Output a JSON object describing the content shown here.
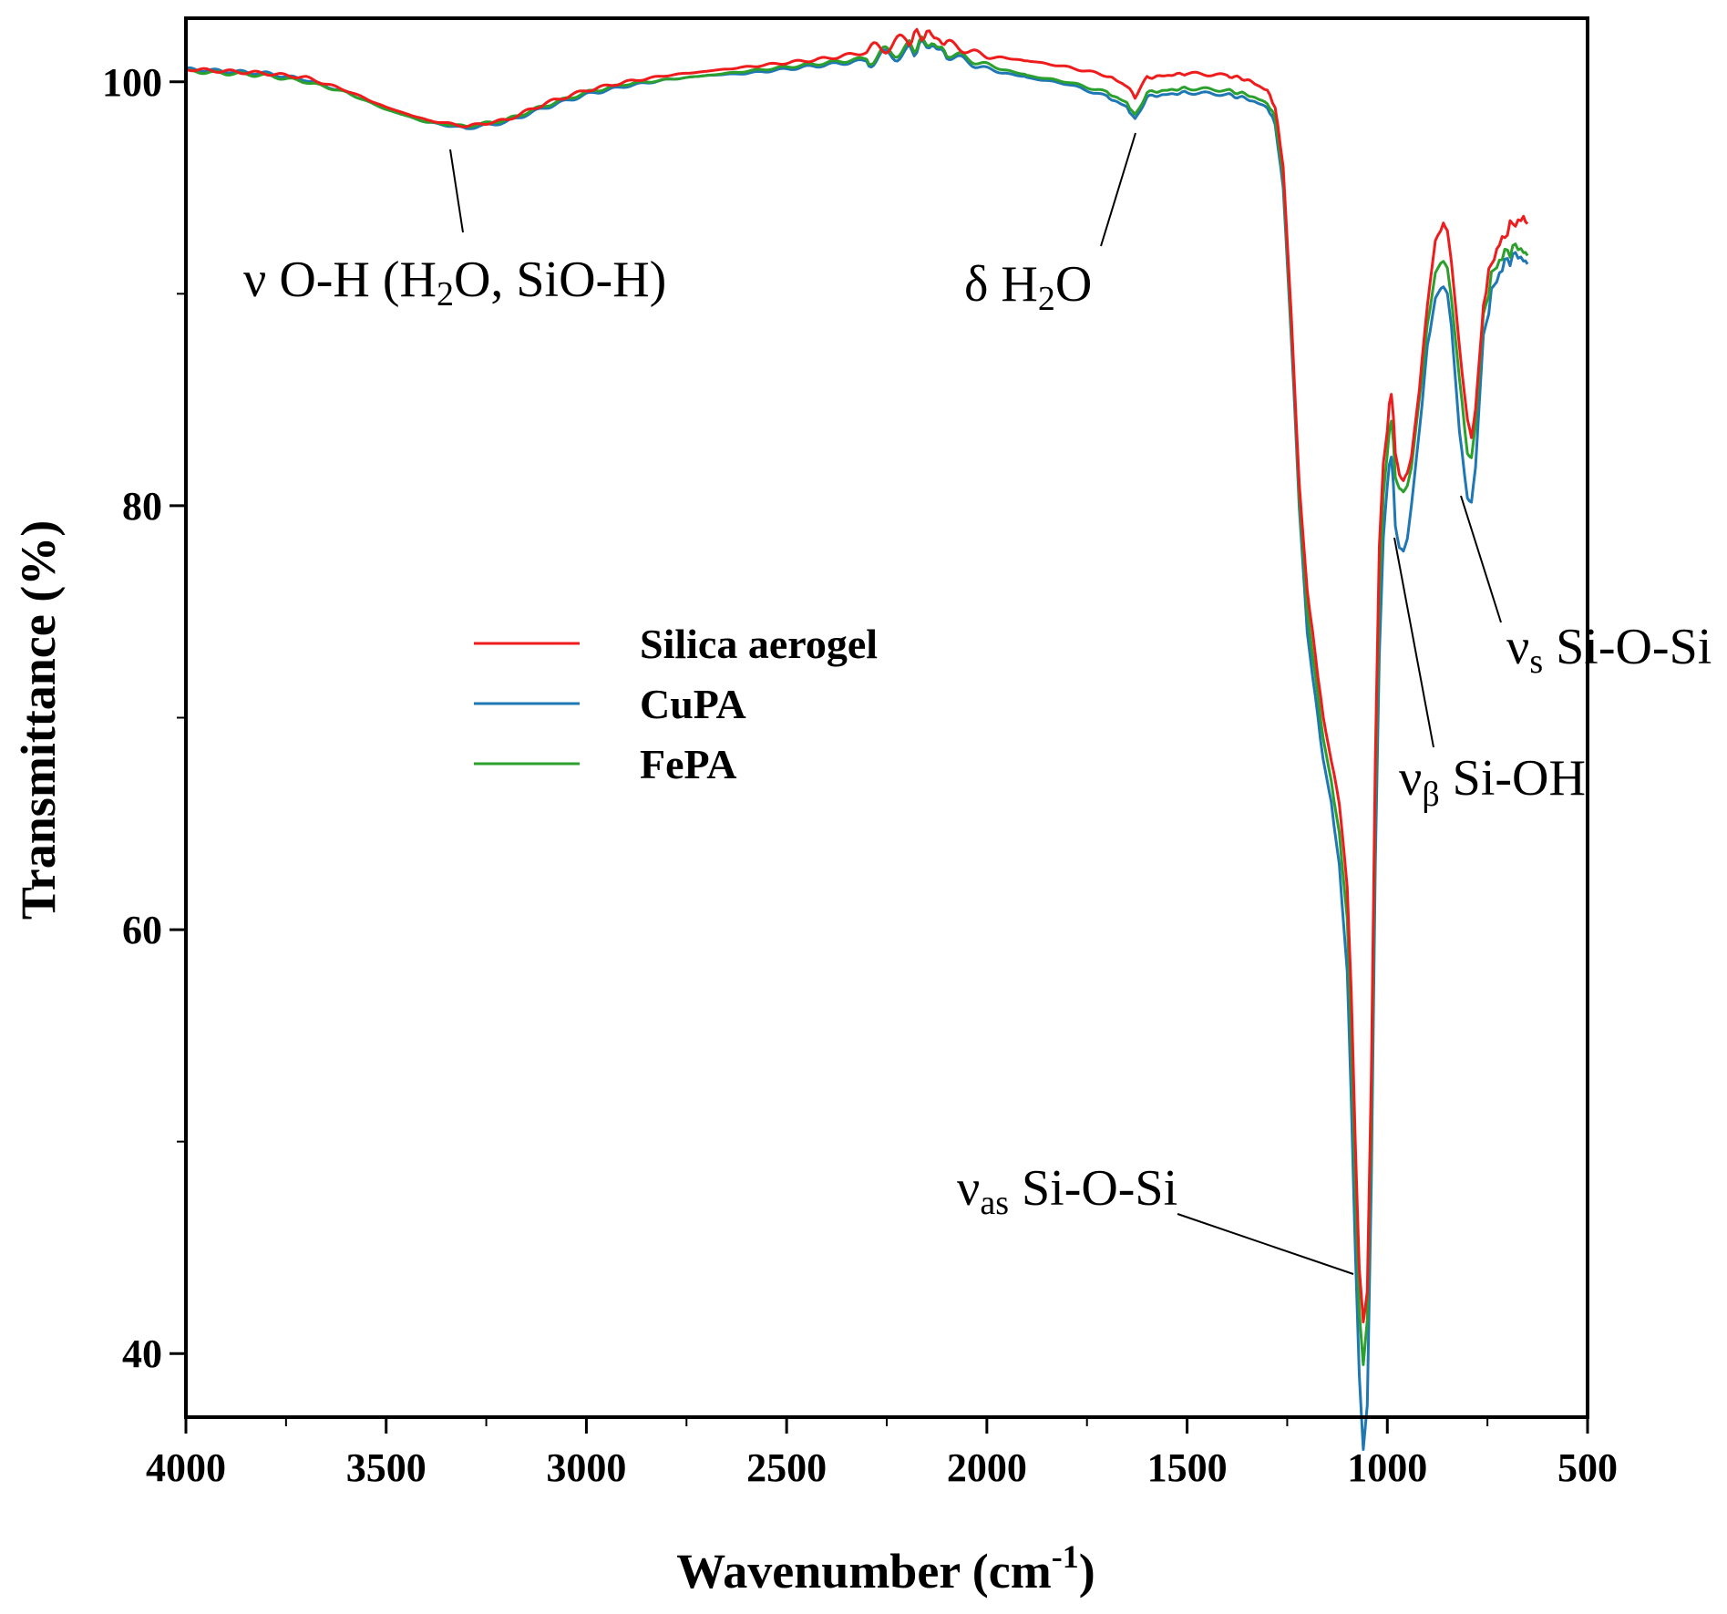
{
  "chart_data": {
    "type": "line",
    "xlabel": "Wavenumber (cm",
    "xlabel_sup": "-1",
    "xlabel_tail": ")",
    "ylabel": "Transmittance (%)",
    "xlim": [
      4000,
      500
    ],
    "ylim": [
      37,
      103
    ],
    "x_ticks": [
      4000,
      3500,
      3000,
      2500,
      2000,
      1500,
      1000,
      500
    ],
    "y_ticks": [
      40,
      60,
      80,
      100
    ],
    "legend": [
      "Silica aerogel",
      "CuPA",
      "FePA"
    ],
    "colors": {
      "Silica aerogel": "#ee1c1c",
      "CuPA": "#1f77b4",
      "FePA": "#2ca02c"
    },
    "series": [
      {
        "name": "Silica aerogel",
        "x": [
          4000,
          3900,
          3800,
          3700,
          3600,
          3500,
          3400,
          3300,
          3200,
          3100,
          3000,
          2900,
          2800,
          2700,
          2600,
          2500,
          2400,
          2300,
          2200,
          2150,
          2100,
          2000,
          1900,
          1800,
          1700,
          1650,
          1630,
          1600,
          1550,
          1500,
          1400,
          1350,
          1300,
          1280,
          1260,
          1240,
          1220,
          1200,
          1180,
          1160,
          1140,
          1120,
          1100,
          1090,
          1080,
          1070,
          1060,
          1050,
          1040,
          1030,
          1020,
          1010,
          1000,
          995,
          990,
          985,
          980,
          970,
          960,
          950,
          940,
          920,
          900,
          880,
          860,
          850,
          840,
          820,
          800,
          790,
          780,
          770,
          760,
          740,
          720,
          700,
          680,
          660,
          650
        ],
        "y": [
          100.6,
          100.5,
          100.4,
          100.2,
          99.6,
          98.8,
          98.2,
          97.9,
          98.2,
          99.0,
          99.6,
          100.0,
          100.3,
          100.5,
          100.7,
          100.9,
          101.1,
          101.4,
          102.0,
          102.3,
          101.8,
          101.2,
          101.0,
          100.7,
          100.3,
          99.8,
          99.3,
          100.2,
          100.3,
          100.4,
          100.3,
          100.1,
          99.6,
          98.8,
          96.0,
          89.0,
          81.0,
          76.0,
          73.0,
          70.0,
          68.0,
          66.0,
          62.0,
          57.0,
          50.0,
          44.0,
          41.5,
          43.0,
          53.0,
          68.0,
          78.0,
          82.0,
          83.5,
          84.8,
          85.3,
          84.3,
          82.5,
          81.5,
          81.2,
          81.5,
          82.3,
          85.5,
          89.5,
          92.5,
          93.3,
          93.0,
          91.5,
          87.5,
          84.0,
          83.2,
          84.5,
          87.0,
          89.5,
          91.5,
          92.3,
          93.0,
          93.4,
          93.5,
          93.3
        ]
      },
      {
        "name": "CuPA",
        "x": [
          4000,
          3900,
          3800,
          3700,
          3600,
          3500,
          3400,
          3300,
          3200,
          3100,
          3000,
          2900,
          2800,
          2700,
          2600,
          2500,
          2400,
          2300,
          2200,
          2150,
          2100,
          2000,
          1900,
          1800,
          1700,
          1650,
          1630,
          1600,
          1550,
          1500,
          1400,
          1350,
          1300,
          1280,
          1260,
          1240,
          1220,
          1200,
          1180,
          1160,
          1140,
          1120,
          1100,
          1090,
          1080,
          1070,
          1060,
          1050,
          1040,
          1030,
          1020,
          1010,
          1000,
          995,
          990,
          985,
          980,
          970,
          960,
          950,
          940,
          920,
          900,
          880,
          860,
          850,
          840,
          820,
          800,
          790,
          780,
          770,
          760,
          740,
          720,
          700,
          680,
          660,
          650
        ],
        "y": [
          100.6,
          100.5,
          100.4,
          100.1,
          99.5,
          98.7,
          98.1,
          97.8,
          98.1,
          98.8,
          99.4,
          99.8,
          100.1,
          100.3,
          100.4,
          100.6,
          100.8,
          101.0,
          101.4,
          101.8,
          101.3,
          100.6,
          100.2,
          99.9,
          99.3,
          98.8,
          98.2,
          99.3,
          99.4,
          99.5,
          99.4,
          99.2,
          98.8,
          98.0,
          95.0,
          88.0,
          80.0,
          74.0,
          71.0,
          68.0,
          66.0,
          63.0,
          58.0,
          52.0,
          45.0,
          39.0,
          35.5,
          37.5,
          48.0,
          63.0,
          73.0,
          78.5,
          81.0,
          82.0,
          82.3,
          81.0,
          79.0,
          78.0,
          77.8,
          78.5,
          80.0,
          83.5,
          87.5,
          89.8,
          90.4,
          90.0,
          88.5,
          83.5,
          80.4,
          80.2,
          81.8,
          85.0,
          88.0,
          90.0,
          91.0,
          91.6,
          91.8,
          91.7,
          91.4
        ]
      },
      {
        "name": "FePA",
        "x": [
          4000,
          3900,
          3800,
          3700,
          3600,
          3500,
          3400,
          3300,
          3200,
          3100,
          3000,
          2900,
          2800,
          2700,
          2600,
          2500,
          2400,
          2300,
          2200,
          2150,
          2100,
          2000,
          1900,
          1800,
          1700,
          1650,
          1630,
          1600,
          1550,
          1500,
          1400,
          1350,
          1300,
          1280,
          1260,
          1240,
          1220,
          1200,
          1180,
          1160,
          1140,
          1120,
          1100,
          1090,
          1080,
          1070,
          1060,
          1050,
          1040,
          1030,
          1020,
          1010,
          1000,
          995,
          990,
          985,
          980,
          970,
          960,
          950,
          940,
          920,
          900,
          880,
          860,
          850,
          840,
          820,
          800,
          790,
          780,
          770,
          760,
          740,
          720,
          700,
          680,
          660,
          650
        ],
        "y": [
          100.5,
          100.4,
          100.3,
          100.0,
          99.5,
          98.7,
          98.1,
          97.9,
          98.2,
          98.9,
          99.5,
          99.9,
          100.1,
          100.3,
          100.5,
          100.7,
          100.9,
          101.1,
          101.6,
          101.9,
          101.4,
          100.8,
          100.3,
          100.0,
          99.5,
          99.0,
          98.4,
          99.5,
          99.6,
          99.7,
          99.6,
          99.4,
          99.0,
          98.3,
          95.5,
          88.5,
          80.5,
          75.0,
          72.0,
          69.0,
          67.0,
          64.5,
          60.5,
          55.0,
          48.0,
          42.0,
          39.5,
          41.5,
          51.0,
          66.0,
          76.0,
          80.5,
          82.5,
          83.6,
          84.0,
          83.0,
          81.3,
          80.8,
          80.6,
          81.0,
          81.8,
          85.0,
          88.5,
          91.0,
          91.6,
          91.2,
          89.8,
          86.0,
          82.5,
          82.3,
          83.8,
          86.5,
          89.0,
          90.8,
          91.6,
          92.0,
          92.2,
          92.1,
          91.8
        ]
      }
    ],
    "annotations": [
      {
        "id": "oh",
        "main": "ν O-H (H",
        "sub": "2",
        "tail": "O, SiO-H)",
        "x": 3300,
        "y": 97.9
      },
      {
        "id": "h2o",
        "main": "δ H",
        "sub": "2",
        "tail": "O",
        "x": 1630,
        "y": 98.2
      },
      {
        "id": "vas",
        "main": "ν",
        "sub": "as",
        "tail": " Si-O-Si",
        "x": 1065,
        "y": 42.0
      },
      {
        "id": "vb",
        "main": "ν",
        "sub": "β",
        "tail": " Si-OH",
        "x": 970,
        "y": 78.0
      },
      {
        "id": "vs",
        "main": "ν",
        "sub": "s",
        "tail": " Si-O-Si",
        "x": 795,
        "y": 80.4
      }
    ]
  }
}
